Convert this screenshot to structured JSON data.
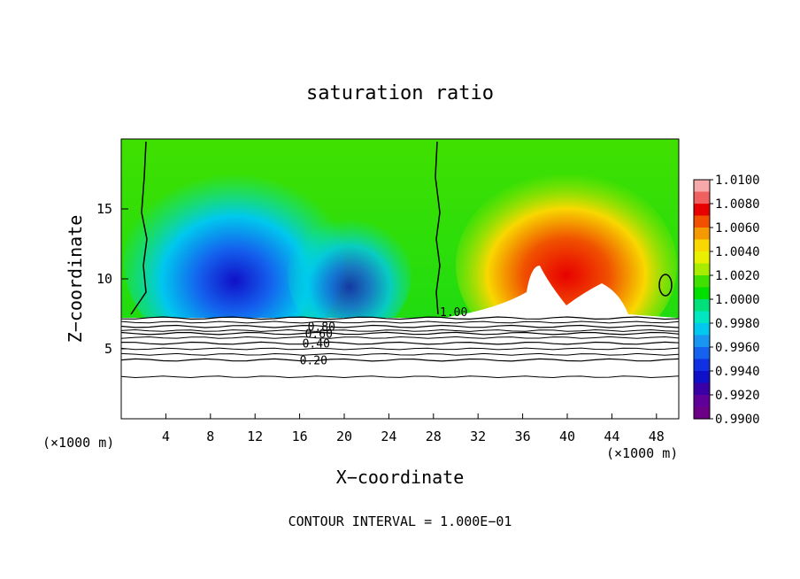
{
  "chart_data": {
    "type": "heatmap",
    "title": "saturation ratio",
    "xlabel": "X−coordinate",
    "ylabel": "Z−coordinate",
    "x_unit_left": "(×1000 m)",
    "x_unit_right": "(×1000 m)",
    "footer": "CONTOUR INTERVAL = 1.000E−01",
    "xlim": [
      0,
      50
    ],
    "ylim": [
      0,
      20
    ],
    "x_ticks": [
      4,
      8,
      12,
      16,
      20,
      24,
      28,
      32,
      36,
      40,
      44,
      48
    ],
    "y_ticks": [
      5,
      10,
      15
    ],
    "colorbar": {
      "min": 0.99,
      "max": 1.01,
      "labels": [
        "1.0100",
        "1.0080",
        "1.0060",
        "1.0040",
        "1.0020",
        "1.0000",
        "0.9980",
        "0.9960",
        "0.9940",
        "0.9920",
        "0.9900"
      ],
      "colors": [
        "#f7a8a8",
        "#f06060",
        "#e80000",
        "#f05000",
        "#f49a00",
        "#f8d800",
        "#e8f000",
        "#a8ec00",
        "#40e000",
        "#00e000",
        "#00e07a",
        "#00e6c0",
        "#00c8ee",
        "#1896f2",
        "#1462ee",
        "#1030e4",
        "#1010c8",
        "#3a00a8",
        "#60009a",
        "#6c0086"
      ]
    },
    "contour_lines": [
      {
        "label": "0.20",
        "z": 4.2
      },
      {
        "label": "0.40",
        "z": 5.4
      },
      {
        "label": "0.60",
        "z": 6.1
      },
      {
        "label": "0.80",
        "z": 6.6
      },
      {
        "label": "1.00",
        "z": 7.2
      }
    ],
    "unit_contour_label": "1.00"
  }
}
